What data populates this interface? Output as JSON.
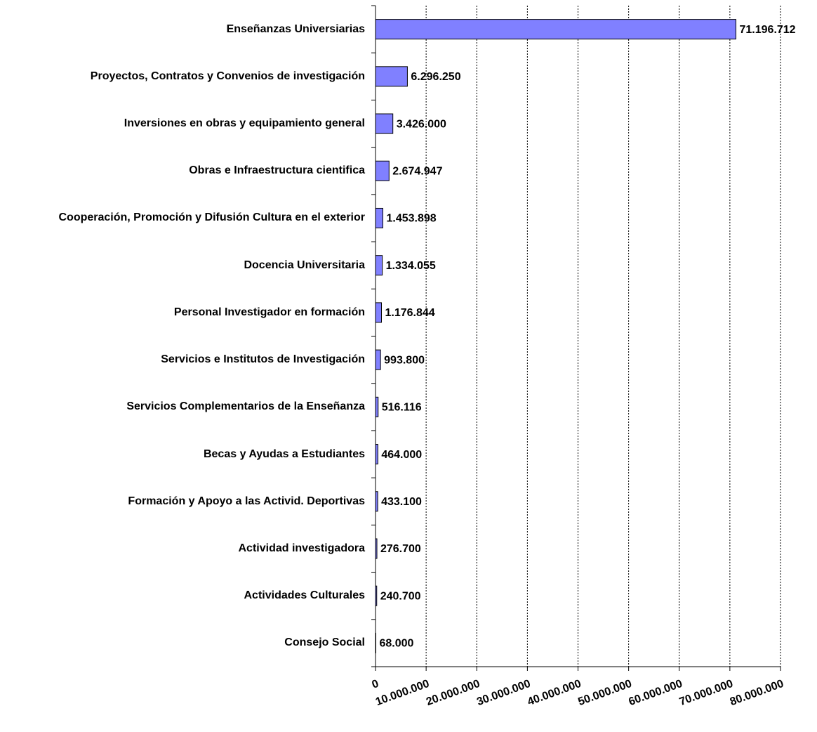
{
  "chart_data": {
    "type": "bar",
    "orientation": "horizontal",
    "categories": [
      "Enseñanzas Universiarias",
      "Proyectos, Contratos y Convenios de investigación",
      "Inversiones en obras y equipamiento general",
      "Obras e Infraestructura cientifica",
      "Cooperación, Promoción y Difusión Cultura en el exterior",
      "Docencia Universitaria",
      "Personal Investigador en formación",
      "Servicios e Institutos de Investigación",
      "Servicios Complementarios de la Enseñanza",
      "Becas y Ayudas a Estudiantes",
      "Formación y Apoyo a las Activid. Deportivas",
      "Actividad investigadora",
      "Actividades Culturales",
      "Consejo Social"
    ],
    "values": [
      71196712,
      6296250,
      3426000,
      2674947,
      1453898,
      1334055,
      1176844,
      993800,
      516116,
      464000,
      433100,
      276700,
      240700,
      68000
    ],
    "value_labels": [
      "71.196.712",
      "6.296.250",
      "3.426.000",
      "2.674.947",
      "1.453.898",
      "1.334.055",
      "1.176.844",
      "993.800",
      "516.116",
      "464.000",
      "433.100",
      "276.700",
      "240.700",
      "68.000"
    ],
    "color": "#8080ff",
    "xlim": [
      0,
      80000000
    ],
    "xticks": [
      0,
      {
        "value": 10000000,
        "label": "10.000.000"
      },
      {
        "value": 20000000,
        "label": "20.000.000"
      },
      {
        "value": 30000000,
        "label": "30.000.000"
      },
      {
        "value": 40000000,
        "label": "40.000.000"
      },
      {
        "value": 50000000,
        "label": "50.000.000"
      },
      {
        "value": 60000000,
        "label": "60.000.000"
      },
      {
        "value": 70000000,
        "label": "70.000.000"
      },
      {
        "value": 80000000,
        "label": "80.000.000"
      }
    ],
    "grid": true
  }
}
